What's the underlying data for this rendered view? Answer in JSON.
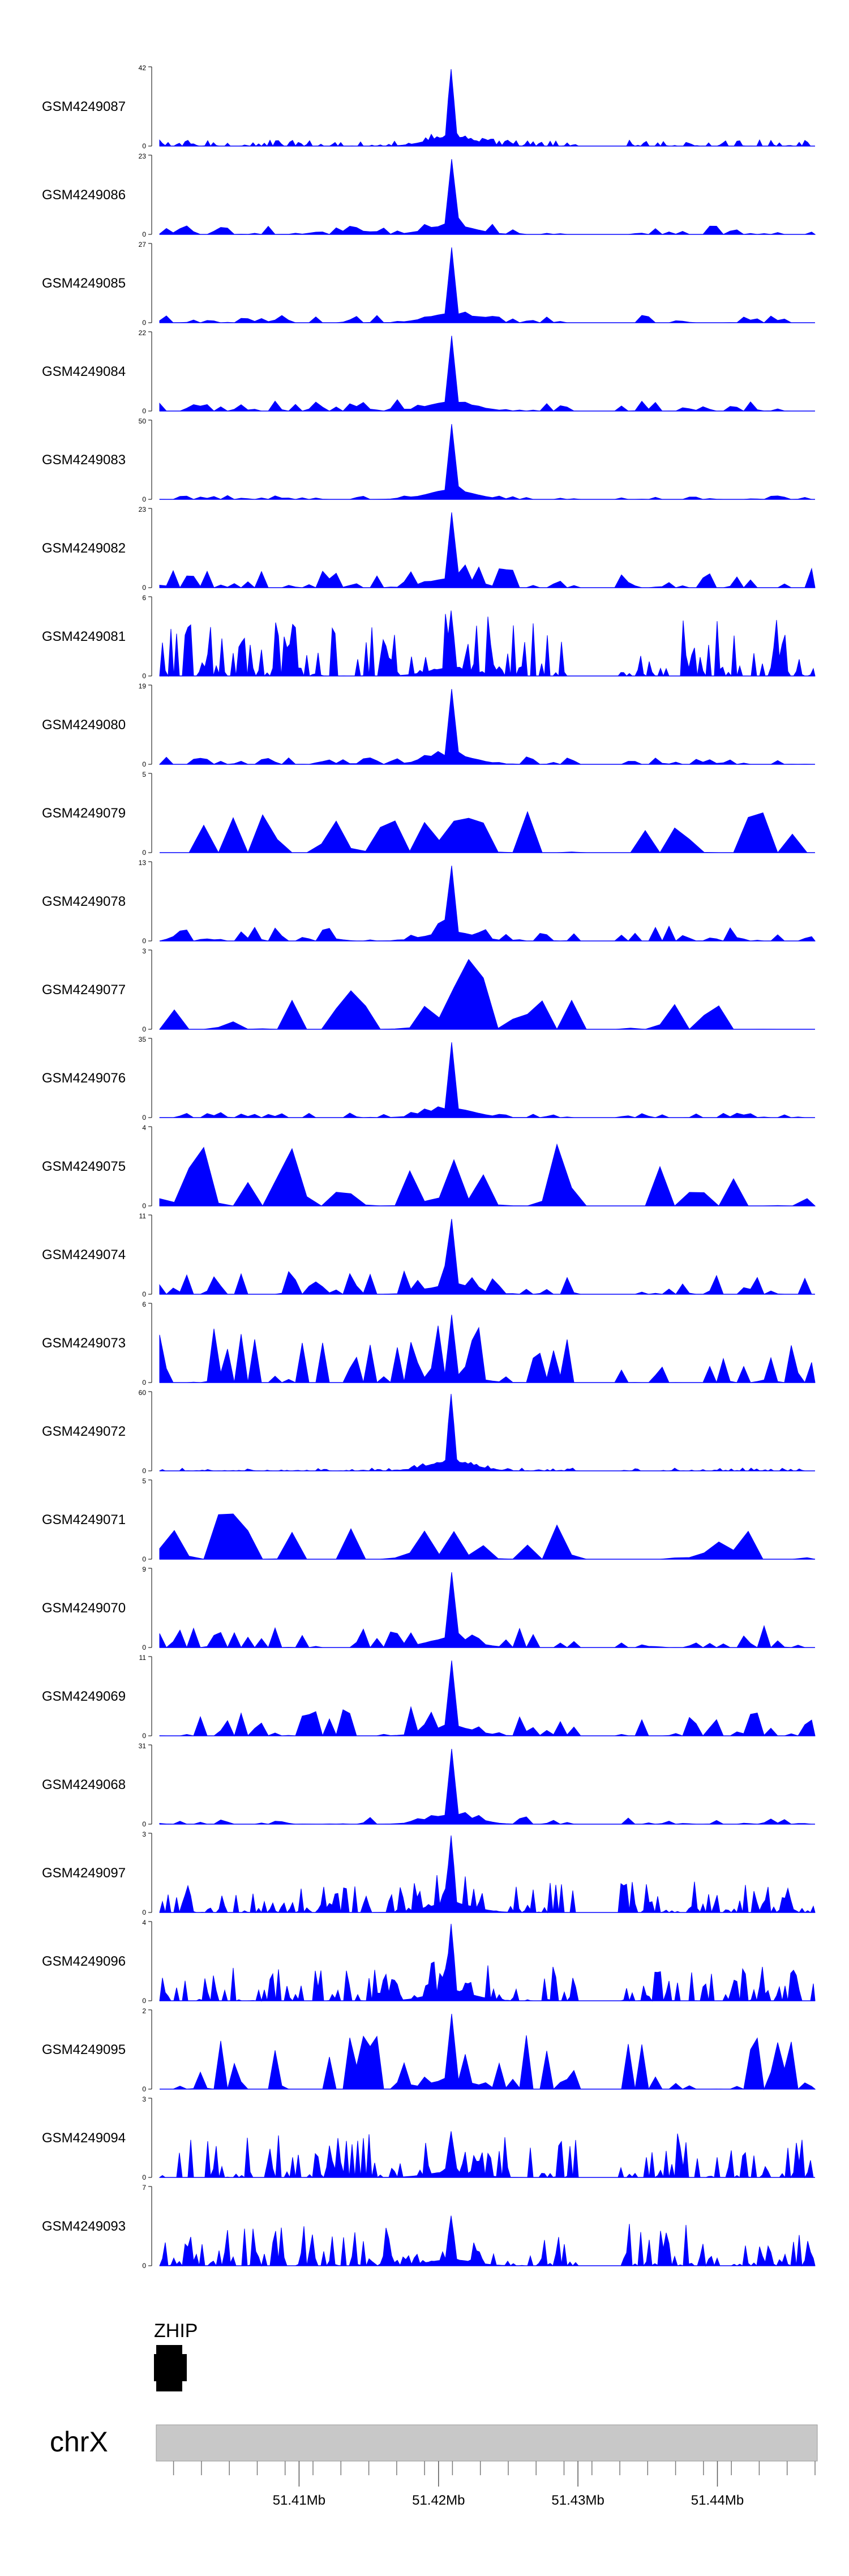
{
  "chart_data": {
    "type": "area",
    "color": "#0000ff",
    "x_range_bp": [
      51400000,
      51447000
    ],
    "peak_bp": 51420900,
    "gap_bp": [
      51430000,
      51433000
    ],
    "series": [
      {
        "name": "GSM4249087",
        "ymax": 42,
        "ymin": 0,
        "peak": 1.0,
        "noise": 0.08,
        "density": "dense"
      },
      {
        "name": "GSM4249086",
        "ymax": 23,
        "ymin": 0,
        "peak": 1.0,
        "noise": 0.12,
        "density": "medium"
      },
      {
        "name": "GSM4249085",
        "ymax": 27,
        "ymin": 0,
        "peak": 1.0,
        "noise": 0.1,
        "density": "medium"
      },
      {
        "name": "GSM4249084",
        "ymax": 22,
        "ymin": 0,
        "peak": 1.0,
        "noise": 0.15,
        "density": "medium"
      },
      {
        "name": "GSM4249083",
        "ymax": 50,
        "ymin": 0,
        "peak": 1.0,
        "noise": 0.06,
        "density": "medium"
      },
      {
        "name": "GSM4249082",
        "ymax": 23,
        "ymin": 0,
        "peak": 1.0,
        "noise": 0.25,
        "density": "medium"
      },
      {
        "name": "GSM4249081",
        "ymax": 6,
        "ymin": 0,
        "peak": 0.85,
        "noise": 0.8,
        "density": "dense"
      },
      {
        "name": "GSM4249080",
        "ymax": 19,
        "ymin": 0,
        "peak": 1.0,
        "noise": 0.1,
        "density": "medium"
      },
      {
        "name": "GSM4249079",
        "ymax": 5,
        "ymin": 0,
        "peak": 0.6,
        "noise": 0.55,
        "density": "sparse"
      },
      {
        "name": "GSM4249078",
        "ymax": 13,
        "ymin": 0,
        "peak": 1.0,
        "noise": 0.2,
        "density": "medium"
      },
      {
        "name": "GSM4249077",
        "ymax": 3,
        "ymin": 0,
        "peak": 0.9,
        "noise": 0.85,
        "density": "sparse"
      },
      {
        "name": "GSM4249076",
        "ymax": 35,
        "ymin": 0,
        "peak": 1.0,
        "noise": 0.07,
        "density": "medium"
      },
      {
        "name": "GSM4249075",
        "ymax": 4,
        "ymin": 0,
        "peak": 1.0,
        "noise": 0.8,
        "density": "sparse"
      },
      {
        "name": "GSM4249074",
        "ymax": 11,
        "ymin": 0,
        "peak": 1.0,
        "noise": 0.3,
        "density": "medium"
      },
      {
        "name": "GSM4249073",
        "ymax": 6,
        "ymin": 0,
        "peak": 0.9,
        "noise": 0.7,
        "density": "medium"
      },
      {
        "name": "GSM4249072",
        "ymax": 60,
        "ymin": 0,
        "peak": 1.0,
        "noise": 0.04,
        "density": "dense"
      },
      {
        "name": "GSM4249071",
        "ymax": 5,
        "ymin": 0,
        "peak": 0.6,
        "noise": 0.6,
        "density": "sparse"
      },
      {
        "name": "GSM4249070",
        "ymax": 9,
        "ymin": 0,
        "peak": 1.0,
        "noise": 0.3,
        "density": "medium"
      },
      {
        "name": "GSM4249069",
        "ymax": 11,
        "ymin": 0,
        "peak": 1.0,
        "noise": 0.35,
        "density": "medium"
      },
      {
        "name": "GSM4249068",
        "ymax": 31,
        "ymin": 0,
        "peak": 1.0,
        "noise": 0.1,
        "density": "medium"
      },
      {
        "name": "GSM4249097",
        "ymax": 3,
        "ymin": 0,
        "peak": 1.0,
        "noise": 0.4,
        "density": "dense"
      },
      {
        "name": "GSM4249096",
        "ymax": 4,
        "ymin": 0,
        "peak": 1.0,
        "noise": 0.45,
        "density": "dense"
      },
      {
        "name": "GSM4249095",
        "ymax": 2,
        "ymin": 0,
        "peak": 1.0,
        "noise": 0.7,
        "density": "medium"
      },
      {
        "name": "GSM4249094",
        "ymax": 3,
        "ymin": 0,
        "peak": 0.6,
        "noise": 0.6,
        "density": "dense"
      },
      {
        "name": "GSM4249093",
        "ymax": 7,
        "ymin": 0,
        "peak": 0.65,
        "noise": 0.55,
        "density": "dense"
      }
    ],
    "gene": {
      "name": "ZHIP"
    },
    "chromosome": {
      "name": "chrX"
    },
    "x_ticks": [
      {
        "label": "51.41Mb",
        "bp": 51410000
      },
      {
        "label": "51.42Mb",
        "bp": 51420000
      },
      {
        "label": "51.43Mb",
        "bp": 51430000
      },
      {
        "label": "51.44Mb",
        "bp": 51440000
      }
    ]
  }
}
